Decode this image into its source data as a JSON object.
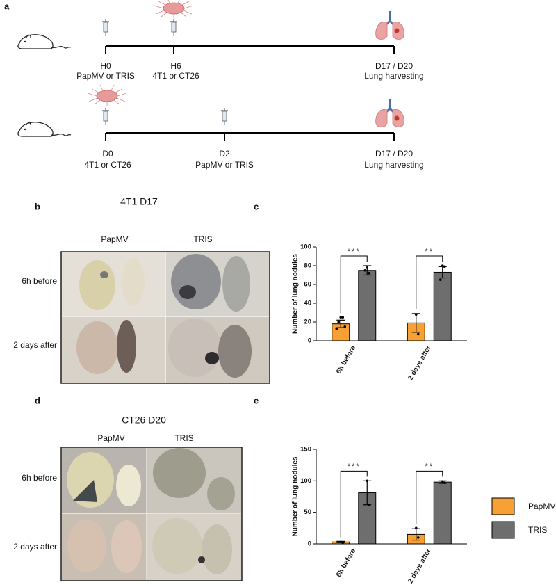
{
  "panel_labels": [
    "a",
    "b",
    "c",
    "d",
    "e"
  ],
  "timelines": [
    {
      "points": [
        {
          "top": "H0",
          "bottom": "PapMV or TRIS"
        },
        {
          "top": "H6",
          "bottom": "4T1 or CT26"
        },
        {
          "top": "D17 / D20",
          "bottom": "Lung harvesting"
        }
      ]
    },
    {
      "points": [
        {
          "top": "D0",
          "bottom": "4T1 or CT26"
        },
        {
          "top": "D2",
          "bottom": "PapMV or TRIS"
        },
        {
          "top": "D17 / D20",
          "bottom": "Lung harvesting"
        }
      ]
    }
  ],
  "photos": [
    {
      "title": "4T1 D17",
      "columns": [
        "PapMV",
        "TRIS"
      ],
      "rows": [
        "6h before",
        "2 days after"
      ]
    },
    {
      "title": "CT26 D20",
      "columns": [
        "PapMV",
        "TRIS"
      ],
      "rows": [
        "6h before",
        "2 days after"
      ]
    }
  ],
  "chart_data": [
    {
      "type": "bar",
      "ylabel": "Number of lung nodules",
      "categories": [
        "6h before",
        "2 days after"
      ],
      "ylim": [
        0,
        100
      ],
      "yticks": [
        0,
        20,
        40,
        60,
        80,
        100
      ],
      "significance": [
        "***",
        "**"
      ],
      "series": [
        {
          "color": "#f7a035",
          "values": [
            18,
            19
          ],
          "errors": [
            4,
            10
          ],
          "points": [
            [
              25,
              25,
              20,
              15,
              13
            ],
            [
              28,
              7
            ]
          ]
        },
        {
          "color": "#6e6e6e",
          "values": [
            75,
            73
          ],
          "errors": [
            5,
            6
          ],
          "points": [
            [
              78,
              72,
              75
            ],
            [
              80,
              79,
              65
            ]
          ]
        }
      ]
    },
    {
      "type": "bar",
      "ylabel": "Number of lung nodules",
      "categories": [
        "6h before",
        "2 days after"
      ],
      "ylim": [
        0,
        150
      ],
      "yticks": [
        0,
        50,
        100,
        150
      ],
      "significance": [
        "***",
        "**"
      ],
      "legend": "right",
      "series": [
        {
          "name": "PapMV",
          "color": "#f7a035",
          "values": [
            3,
            15
          ],
          "errors": [
            1,
            9
          ],
          "points": [
            [
              3,
              2
            ],
            [
              25,
              10
            ]
          ]
        },
        {
          "name": "TRIS",
          "color": "#6e6e6e",
          "values": [
            81,
            98
          ],
          "errors": [
            19,
            2
          ],
          "points": [
            [
              100,
              62
            ],
            [
              99,
              97
            ]
          ]
        }
      ]
    }
  ]
}
